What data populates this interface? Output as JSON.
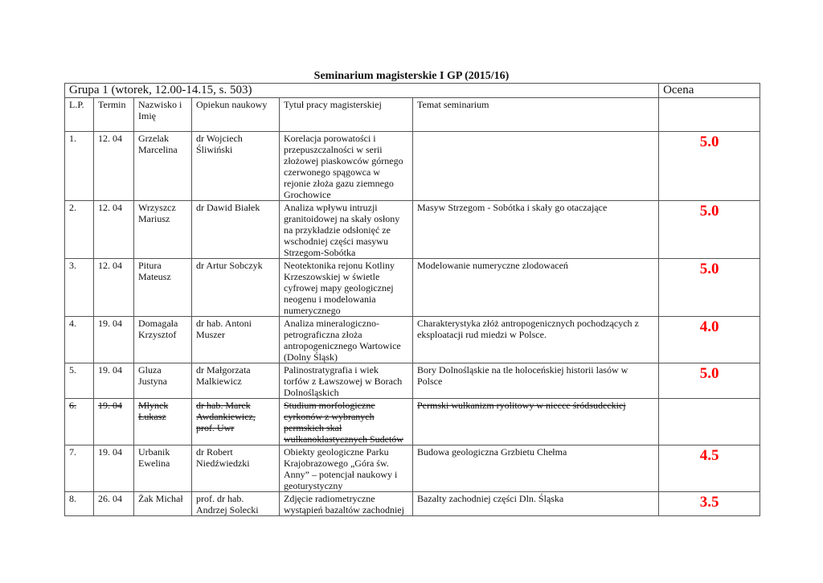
{
  "title": "Seminarium magisterskie I GP (2015/16)",
  "group": "Grupa 1 (wtorek, 12.00-14.15, s. 503)",
  "grade_header": "Ocena",
  "grade_color": "#ff0000",
  "headers": [
    "L.P.",
    "Termin",
    "Nazwisko i\nImię",
    "Opiekun naukowy",
    "Tytuł pracy magisterskiej",
    "Temat seminarium"
  ],
  "rows": [
    {
      "lp": "1.",
      "termin": "12. 04",
      "name": "Grzelak\nMarcelina",
      "supervisor": "dr Wojciech\nŚliwiński",
      "thesis": "Korelacja porowatości i\nprzepuszczalności w serii\nzłożowej piaskowców górnego\nczerwonego spągowca w\nrejonie złoża gazu ziemnego\nGrochowice",
      "topic": "",
      "grade": "5.0",
      "struck": false
    },
    {
      "lp": "2.",
      "termin": "12. 04",
      "name": "Wrzyszcz\nMariusz",
      "supervisor": "dr Dawid Białek",
      "thesis": "Analiza wpływu intruzji\ngranitoidowej na skały osłony\nna przykładzie odsłonięć ze\nwschodniej części masywu\nStrzegom-Sobótka",
      "topic": "Masyw Strzegom - Sobótka i skały go otaczające",
      "grade": "5.0",
      "struck": false
    },
    {
      "lp": "3.",
      "termin": "12. 04",
      "name": "Pitura\nMateusz",
      "supervisor": "dr Artur Sobczyk",
      "thesis": "Neotektonika rejonu Kotliny\nKrzeszowskiej w świetle\ncyfrowej mapy geologicznej\nneogenu i modelowania\nnumerycznego",
      "topic": "Modelowanie numeryczne zlodowaceń",
      "grade": "5.0",
      "struck": false
    },
    {
      "lp": "4.",
      "termin": "19. 04",
      "name": "Domagała\nKrzysztof",
      "supervisor": "dr hab. Antoni\nMuszer",
      "thesis": "Analiza mineralogiczno-\npetrograficzna złoża\nantropogenicznego Wartowice\n(Dolny Śląsk)",
      "topic": "Charakterystyka złóż antropogenicznych pochodzących z\neksploatacji rud miedzi w Polsce.",
      "grade": "4.0",
      "struck": false
    },
    {
      "lp": "5.",
      "termin": "19. 04",
      "name": "Gluza\nJustyna",
      "supervisor": "dr Małgorzata\nMalkiewicz",
      "thesis": "Palinostratygrafia i wiek\ntorfów z Ławszowej w Borach\nDolnośląskich",
      "topic": "Bory Dolnośląskie na tle holoceńskiej historii lasów w\nPolsce",
      "grade": "5.0",
      "struck": false
    },
    {
      "lp": "6.",
      "termin": "19. 04",
      "name": "Młynek\nŁukasz",
      "supervisor": "dr hab. Marek\nAwdankiewicz,\nprof. Uwr",
      "thesis": "Studium morfologiczne\ncyrkonów z wybranych\npermskich skał\nwulkanoklastycznych Sudetów",
      "topic": "Permski wulkanizm ryolitowy w niecce śródsudeckiej",
      "grade": "",
      "struck": true
    },
    {
      "lp": "7.",
      "termin": "19. 04",
      "name": "Urbanik\nEwelina",
      "supervisor": "dr Robert\nNiedźwiedzki",
      "thesis": "Obiekty geologiczne Parku\nKrajobrazowego „Góra św.\nAnny” – potencjał naukowy i\ngeoturystyczny",
      "topic": "Budowa geologiczna Grzbietu Chełma",
      "grade": "4.5",
      "struck": false
    },
    {
      "lp": "8.",
      "termin": "26. 04",
      "name": "Żak Michał",
      "supervisor": "prof. dr hab.\nAndrzej Solecki",
      "thesis": "Zdjęcie radiometryczne\nwystąpień bazaltów zachodniej",
      "topic": "Bazalty zachodniej części Dln. Śląska",
      "grade": "3.5",
      "struck": false
    }
  ]
}
